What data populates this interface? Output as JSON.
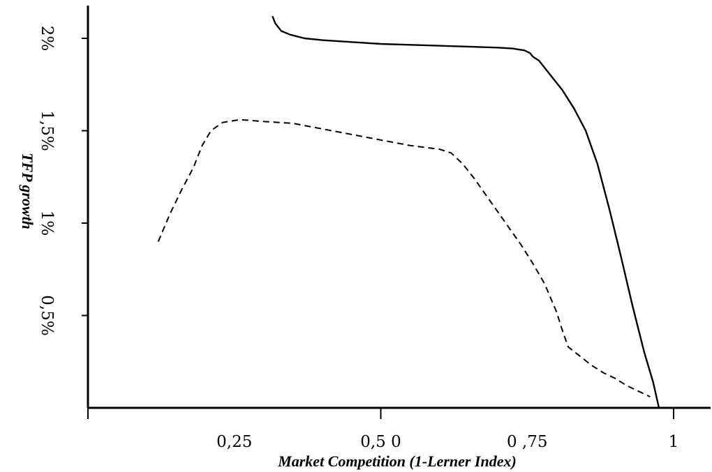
{
  "chart_data": {
    "type": "line",
    "title": "",
    "xlabel": "Market Competition (1-Lerner Index)",
    "ylabel": "TFP growth",
    "xlim": [
      0,
      1.05
    ],
    "ylim": [
      0,
      2.2
    ],
    "grid": false,
    "x_ticks": [
      {
        "value": 0.25,
        "label": "0,25"
      },
      {
        "value": 0.5,
        "label": "0,5 0"
      },
      {
        "value": 0.75,
        "label": "0 ,75"
      },
      {
        "value": 1.0,
        "label": "1"
      }
    ],
    "x_minor_ticks": [
      0.0,
      0.5,
      1.0
    ],
    "y_ticks": [
      {
        "value": 0.5,
        "label": "0,5%"
      },
      {
        "value": 1.0,
        "label": "1%"
      },
      {
        "value": 1.5,
        "label": "1,5%"
      },
      {
        "value": 2.0,
        "label": "2%"
      }
    ],
    "series": [
      {
        "style": "solid",
        "x": [
          0.315,
          0.32,
          0.33,
          0.345,
          0.37,
          0.4,
          0.45,
          0.5,
          0.55,
          0.6,
          0.65,
          0.7,
          0.725,
          0.735,
          0.745,
          0.755,
          0.76,
          0.77,
          0.79,
          0.81,
          0.83,
          0.85,
          0.87,
          0.89,
          0.91,
          0.93,
          0.95,
          0.965,
          0.975
        ],
        "y": [
          2.12,
          2.08,
          2.04,
          2.02,
          2.0,
          1.99,
          1.98,
          1.97,
          1.965,
          1.96,
          1.955,
          1.95,
          1.945,
          1.94,
          1.935,
          1.92,
          1.9,
          1.88,
          1.8,
          1.72,
          1.62,
          1.5,
          1.32,
          1.08,
          0.82,
          0.55,
          0.3,
          0.14,
          0.0
        ]
      },
      {
        "style": "dashed",
        "x": [
          0.12,
          0.14,
          0.16,
          0.18,
          0.195,
          0.21,
          0.23,
          0.26,
          0.3,
          0.35,
          0.4,
          0.45,
          0.5,
          0.55,
          0.6,
          0.62,
          0.64,
          0.66,
          0.68,
          0.7,
          0.72,
          0.74,
          0.76,
          0.78,
          0.8,
          0.81,
          0.82,
          0.84,
          0.86,
          0.88,
          0.9,
          0.92,
          0.94,
          0.96
        ],
        "y": [
          0.9,
          1.05,
          1.18,
          1.3,
          1.42,
          1.5,
          1.545,
          1.56,
          1.55,
          1.54,
          1.51,
          1.48,
          1.45,
          1.42,
          1.4,
          1.38,
          1.32,
          1.24,
          1.15,
          1.06,
          0.97,
          0.88,
          0.78,
          0.67,
          0.52,
          0.42,
          0.33,
          0.28,
          0.23,
          0.19,
          0.16,
          0.12,
          0.09,
          0.06
        ]
      }
    ]
  }
}
